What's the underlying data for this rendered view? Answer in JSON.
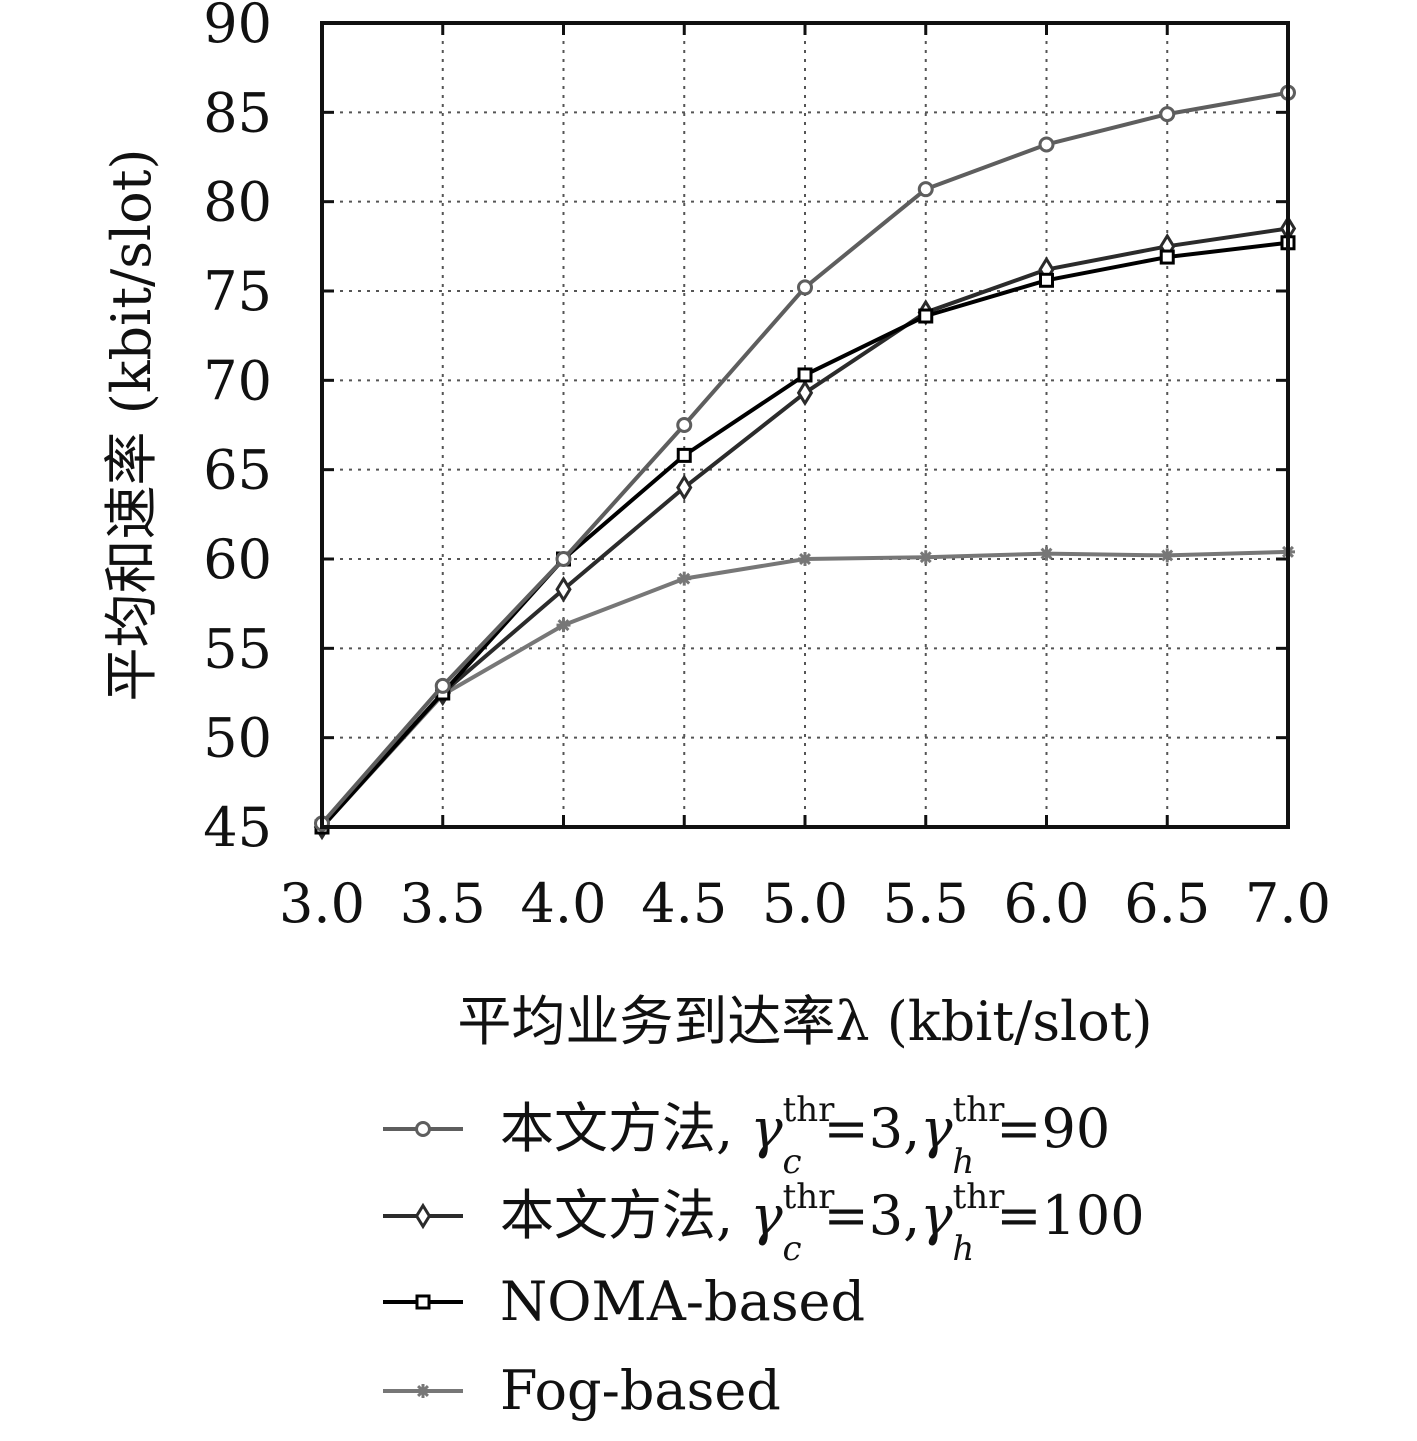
{
  "chart_data": {
    "type": "line",
    "title": "",
    "xlabel": "平均业务到达率λ (kbit/slot)",
    "ylabel": "平均和速率 (kbit/slot)",
    "xlim": [
      3.0,
      7.0
    ],
    "ylim": [
      45,
      90
    ],
    "x_ticks": [
      3.0,
      3.5,
      4.0,
      4.5,
      5.0,
      5.5,
      6.0,
      6.5,
      7.0
    ],
    "x_tick_labels": [
      "3.0",
      "3.5",
      "4.0",
      "4.5",
      "5.0",
      "5.5",
      "6.0",
      "6.5",
      "7.0"
    ],
    "y_ticks": [
      45,
      50,
      55,
      60,
      65,
      70,
      75,
      80,
      85,
      90
    ],
    "y_tick_labels": [
      "45",
      "50",
      "55",
      "60",
      "65",
      "70",
      "75",
      "80",
      "85",
      "90"
    ],
    "grid": true,
    "legend_position": "bottom",
    "x": [
      3.0,
      3.5,
      4.0,
      4.5,
      5.0,
      5.5,
      6.0,
      6.5,
      7.0
    ],
    "series": [
      {
        "name": "本文方法, γ_c^thr=3,γ_h^thr=90",
        "legend_text": "本文方法,",
        "marker": "circle",
        "color": "#5e5e5e",
        "values": [
          45.2,
          52.9,
          60.0,
          67.5,
          75.2,
          80.7,
          83.2,
          84.9,
          86.1
        ]
      },
      {
        "name": "本文方法,γ_c^thr=3,γ_h^thr=100",
        "legend_text": "本文方法,",
        "marker": "diamond",
        "color": "#2b2b2b",
        "values": [
          45.0,
          52.5,
          58.3,
          64.0,
          69.3,
          73.8,
          76.2,
          77.5,
          78.5
        ]
      },
      {
        "name": "NOMA-based",
        "legend_text": "NOMA-based",
        "marker": "square",
        "color": "#000000",
        "values": [
          45.0,
          52.5,
          60.0,
          65.8,
          70.3,
          73.6,
          75.6,
          76.9,
          77.7
        ]
      },
      {
        "name": "Fog-based",
        "legend_text": "Fog-based",
        "marker": "asterisk",
        "color": "#777777",
        "values": [
          45.0,
          52.4,
          56.3,
          58.9,
          60.0,
          60.1,
          60.3,
          60.2,
          60.4
        ]
      }
    ],
    "legend_math": [
      {
        "sym": "γ",
        "sub1": "c",
        "sup1": "thr",
        "mid": "=3,",
        "sym2": "γ",
        "sub2": "h",
        "sup2": "thr",
        "end": "=90"
      },
      {
        "sym": "γ",
        "sub1": "c",
        "sup1": "thr",
        "mid": "=3,",
        "sym2": "γ",
        "sub2": "h",
        "sup2": "thr",
        "end": "=100"
      }
    ]
  }
}
